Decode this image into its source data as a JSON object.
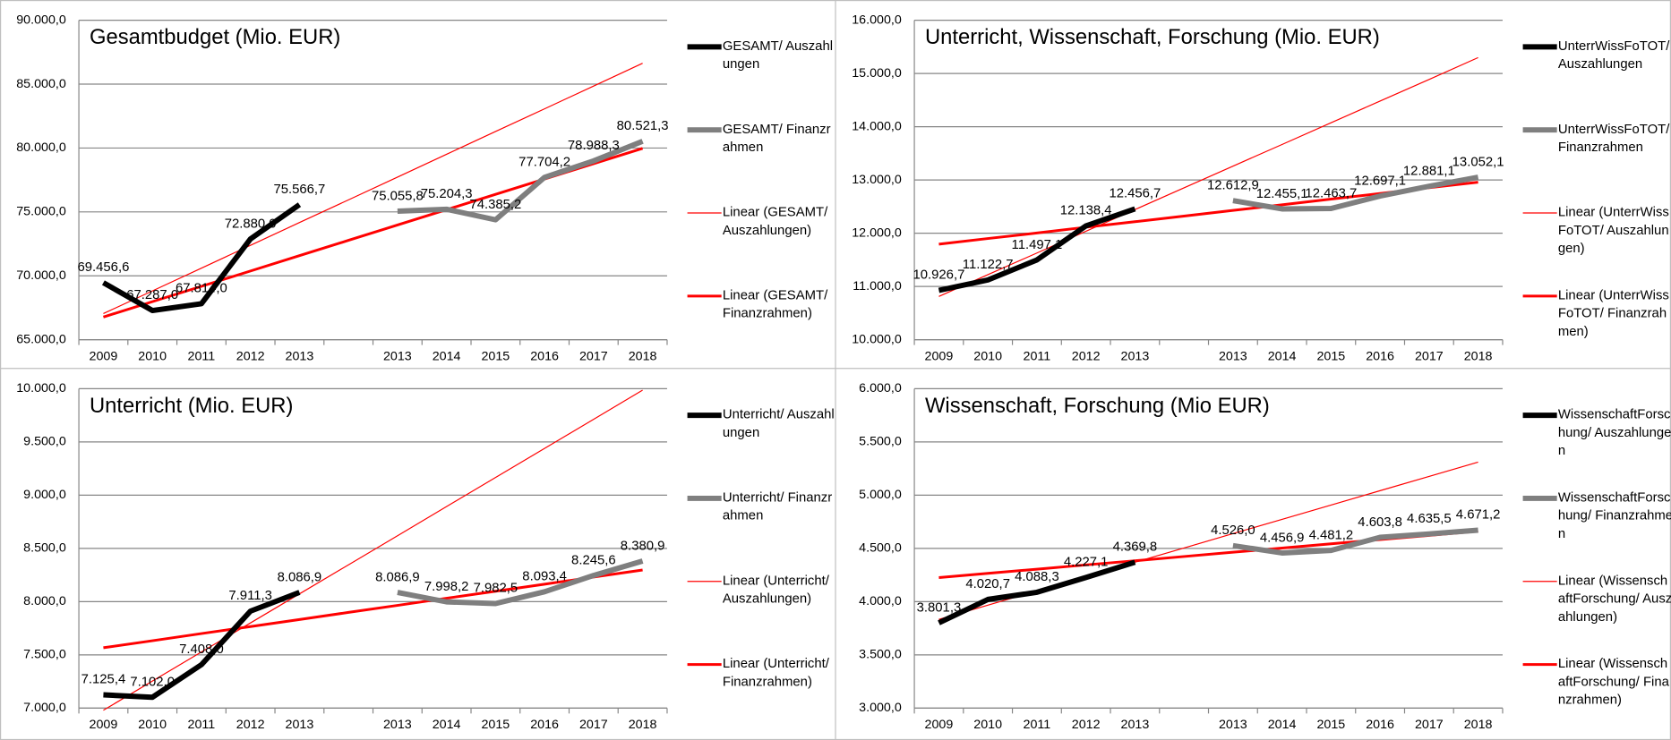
{
  "chart_data": [
    {
      "type": "line",
      "title": "Gesamtbudget (Mio. EUR)",
      "categories": [
        "2009",
        "2010",
        "2011",
        "2012",
        "2013",
        null,
        "2013",
        "2014",
        "2015",
        "2016",
        "2017",
        "2018"
      ],
      "ylim": [
        65000,
        90000
      ],
      "yticks": [
        {
          "value": 65000,
          "label": "65.000,0"
        },
        {
          "value": 70000,
          "label": "70.000,0"
        },
        {
          "value": 75000,
          "label": "75.000,0"
        },
        {
          "value": 80000,
          "label": "80.000,0"
        },
        {
          "value": 85000,
          "label": "85.000,0"
        },
        {
          "value": 90000,
          "label": "90.000,0"
        }
      ],
      "grid": true,
      "series": [
        {
          "name": "GESAMT/ Auszahlungen",
          "color": "#000000",
          "values": [
            69456.6,
            67287.0,
            67814.0,
            72880.0,
            75566.7,
            null,
            null,
            null,
            null,
            null,
            null,
            null
          ],
          "value_labels": [
            "69.456,6",
            "67.287,0",
            "67.814,0",
            "72.880,0",
            "75.566,7",
            null,
            null,
            null,
            null,
            null,
            null,
            null
          ]
        },
        {
          "name": "GESAMT/ Finanzrahmen",
          "color": "#7f7f7f",
          "values": [
            null,
            null,
            null,
            null,
            null,
            null,
            75055.8,
            75204.3,
            74385.2,
            77704.2,
            78988.3,
            80521.3
          ],
          "value_labels": [
            null,
            null,
            null,
            null,
            null,
            null,
            "75.055,8",
            "75.204,3",
            "74.385,2",
            "77.704,2",
            "78.988,3",
            "80.521,3"
          ]
        },
        {
          "name": "Linear (GESAMT/ Auszahlungen)",
          "color": "#ff0000",
          "values": [
            67038,
            68820,
            70601,
            72382,
            74164,
            75945,
            77726,
            79507,
            81289,
            83070,
            84851,
            86633
          ]
        },
        {
          "name": "Linear (GESAMT/ Finanzrahmen)",
          "color": "#ff0000",
          "values": [
            66777,
            67977,
            69177,
            70377,
            71577,
            72777,
            73977,
            75177,
            76377,
            77577,
            78777,
            79977
          ]
        }
      ]
    },
    {
      "type": "line",
      "title": "Unterricht, Wissenschaft, Forschung (Mio. EUR)",
      "categories": [
        "2009",
        "2010",
        "2011",
        "2012",
        "2013",
        null,
        "2013",
        "2014",
        "2015",
        "2016",
        "2017",
        "2018"
      ],
      "ylim": [
        10000,
        16000
      ],
      "yticks": [
        {
          "value": 10000,
          "label": "10.000,0"
        },
        {
          "value": 11000,
          "label": "11.000,0"
        },
        {
          "value": 12000,
          "label": "12.000,0"
        },
        {
          "value": 13000,
          "label": "13.000,0"
        },
        {
          "value": 14000,
          "label": "14.000,0"
        },
        {
          "value": 15000,
          "label": "15.000,0"
        },
        {
          "value": 16000,
          "label": "16.000,0"
        }
      ],
      "grid": true,
      "series": [
        {
          "name": "UnterrWissFoTOT/ Auszahlungen",
          "color": "#000000",
          "values": [
            10926.7,
            11122.7,
            11497.1,
            12138.4,
            12456.7,
            null,
            null,
            null,
            null,
            null,
            null,
            null
          ],
          "value_labels": [
            "10.926,7",
            "11.122,7",
            "11.497,1",
            "12.138,4",
            "12.456,7",
            null,
            null,
            null,
            null,
            null,
            null,
            null
          ]
        },
        {
          "name": "UnterrWissFoTOT/ Finanzrahmen",
          "color": "#7f7f7f",
          "values": [
            null,
            null,
            null,
            null,
            null,
            null,
            12612.9,
            12455.1,
            12463.7,
            12697.1,
            12881.1,
            13052.1
          ],
          "value_labels": [
            null,
            null,
            null,
            null,
            null,
            null,
            "12.612,9",
            "12.455,1",
            "12.463,7",
            "12.697,1",
            "12.881,1",
            "13.052,1"
          ]
        },
        {
          "name": "Linear (UnterrWissFoTOT/ Auszahlungen)",
          "color": "#ff0000",
          "values": [
            10813,
            11221,
            11628,
            12036,
            12444,
            12851,
            13259,
            13666,
            14074,
            14482,
            14889,
            15297
          ]
        },
        {
          "name": "Linear (UnterrWissFoTOT/ Finanzrahmen)",
          "color": "#ff0000",
          "values": [
            11794,
            11900,
            12005,
            12111,
            12217,
            12323,
            12429,
            12535,
            12641,
            12747,
            12853,
            12959
          ]
        }
      ]
    },
    {
      "type": "line",
      "title": "Unterricht (Mio. EUR)",
      "categories": [
        "2009",
        "2010",
        "2011",
        "2012",
        "2013",
        null,
        "2013",
        "2014",
        "2015",
        "2016",
        "2017",
        "2018"
      ],
      "ylim": [
        7000,
        10000
      ],
      "yticks": [
        {
          "value": 7000,
          "label": "7.000,0"
        },
        {
          "value": 7500,
          "label": "7.500,0"
        },
        {
          "value": 8000,
          "label": "8.000,0"
        },
        {
          "value": 8500,
          "label": "8.500,0"
        },
        {
          "value": 9000,
          "label": "9.000,0"
        },
        {
          "value": 9500,
          "label": "9.500,0"
        },
        {
          "value": 10000,
          "label": "10.000,0"
        }
      ],
      "grid": true,
      "series": [
        {
          "name": "Unterricht/ Auszahlungen",
          "color": "#000000",
          "values": [
            7125.4,
            7102.0,
            7408.0,
            7911.3,
            8086.9,
            null,
            null,
            null,
            null,
            null,
            null,
            null
          ],
          "value_labels": [
            "7.125,4",
            "7.102,0",
            "7.408,0",
            "7.911,3",
            "8.086,9",
            null,
            null,
            null,
            null,
            null,
            null,
            null
          ]
        },
        {
          "name": "Unterricht/ Finanzrahmen",
          "color": "#7f7f7f",
          "values": [
            null,
            null,
            null,
            null,
            null,
            null,
            8086.9,
            7998.2,
            7982.5,
            8093.4,
            8245.6,
            8380.9
          ],
          "value_labels": [
            null,
            null,
            null,
            null,
            null,
            null,
            "8.086,9",
            "7.998,2",
            "7.982,5",
            "8.093,4",
            "8.245,6",
            "8.380,9"
          ]
        },
        {
          "name": "Linear (Unterricht/ Auszahlungen)",
          "color": "#ff0000",
          "values": [
            6980,
            7254,
            7527,
            7800,
            8073,
            8346,
            8619,
            8893,
            9166,
            9439,
            9712,
            9986
          ]
        },
        {
          "name": "Linear (Unterricht/ Finanzrahmen)",
          "color": "#ff0000",
          "values": [
            7567,
            7633,
            7700,
            7766,
            7832,
            7899,
            7965,
            8032,
            8098,
            8164,
            8231,
            8297
          ]
        }
      ]
    },
    {
      "type": "line",
      "title": "Wissenschaft, Forschung (Mio EUR)",
      "categories": [
        "2009",
        "2010",
        "2011",
        "2012",
        "2013",
        null,
        "2013",
        "2014",
        "2015",
        "2016",
        "2017",
        "2018"
      ],
      "ylim": [
        3000,
        6000
      ],
      "yticks": [
        {
          "value": 3000,
          "label": "3.000,0"
        },
        {
          "value": 3500,
          "label": "3.500,0"
        },
        {
          "value": 4000,
          "label": "4.000,0"
        },
        {
          "value": 4500,
          "label": "4.500,0"
        },
        {
          "value": 5000,
          "label": "5.000,0"
        },
        {
          "value": 5500,
          "label": "5.500,0"
        },
        {
          "value": 6000,
          "label": "6.000,0"
        }
      ],
      "grid": true,
      "series": [
        {
          "name": "WissenschaftForschung/ Auszahlungen",
          "color": "#000000",
          "values": [
            3801.3,
            4020.7,
            4088.3,
            4227.1,
            4369.8,
            null,
            null,
            null,
            null,
            null,
            null,
            null
          ],
          "value_labels": [
            "3.801,3",
            "4.020,7",
            "4.088,3",
            "4.227,1",
            "4.369,8",
            null,
            null,
            null,
            null,
            null,
            null,
            null
          ]
        },
        {
          "name": "WissenschaftForschung/ Finanzrahmen",
          "color": "#7f7f7f",
          "values": [
            null,
            null,
            null,
            null,
            null,
            null,
            4526.0,
            4456.9,
            4481.2,
            4603.8,
            4635.5,
            4671.2
          ],
          "value_labels": [
            null,
            null,
            null,
            null,
            null,
            null,
            "4.526,0",
            "4.456,9",
            "4.481,2",
            "4.603,8",
            "4.635,5",
            "4.671,2"
          ]
        },
        {
          "name": "Linear (WissenschaftForschung/ Auszahlungen)",
          "color": "#ff0000",
          "values": [
            3833,
            3967,
            4102,
            4236,
            4370,
            4504,
            4639,
            4773,
            4907,
            5042,
            5176,
            5310
          ]
        },
        {
          "name": "Linear (WissenschaftForschung/ Finanzrahmen)",
          "color": "#ff0000",
          "values": [
            4226,
            4266,
            4305,
            4345,
            4384,
            4424,
            4464,
            4503,
            4543,
            4583,
            4622,
            4662
          ]
        }
      ]
    }
  ]
}
